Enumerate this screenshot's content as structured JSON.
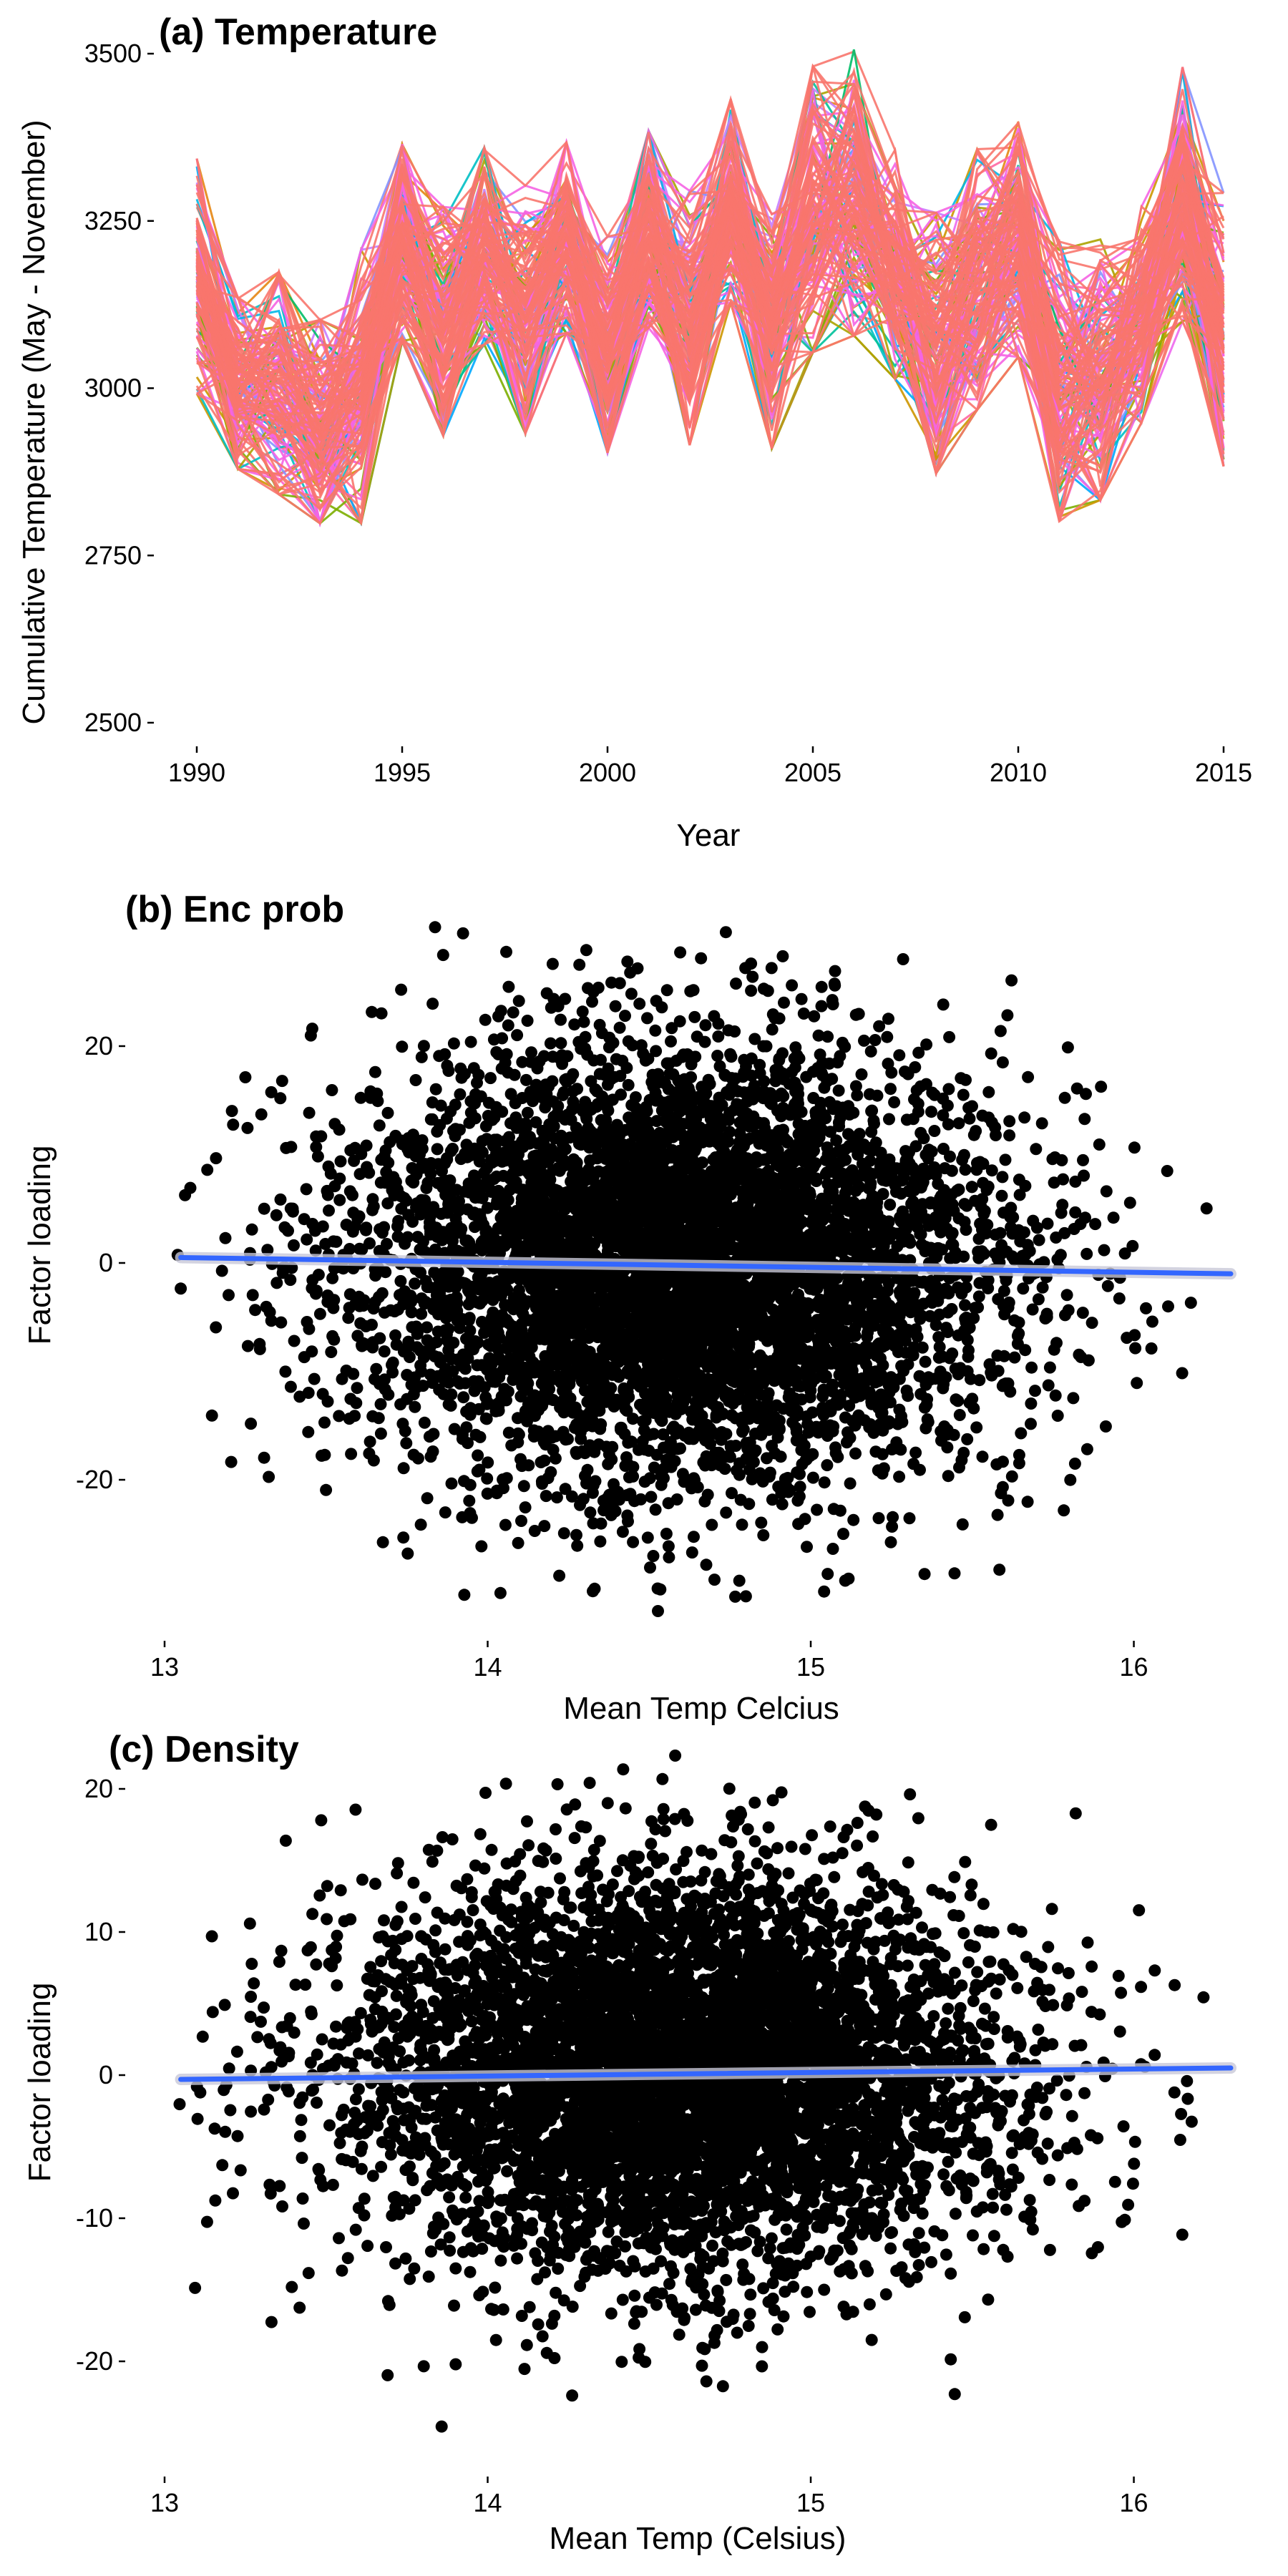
{
  "chart_data": [
    {
      "type": "line",
      "title": "(a) Temperature",
      "xlabel": "Year",
      "ylabel": "Cumulative Temperature (May - November)",
      "xlim": [
        1990,
        2015
      ],
      "ylim": [
        2500,
        3500
      ],
      "x_ticks": [
        "1990",
        "1995",
        "2000",
        "2005",
        "2010",
        "2015"
      ],
      "y_ticks": [
        "2500",
        "2750",
        "3000",
        "3250",
        "3500"
      ],
      "grid": false,
      "legend": "none",
      "series_count_approx": 150,
      "palette": [
        "#F8766D",
        "#E68613",
        "#CD9600",
        "#ABA300",
        "#7CAE00",
        "#0CB702",
        "#00BE67",
        "#00C19A",
        "#00BFC4",
        "#00B8E7",
        "#00A9FF",
        "#8494FF",
        "#C77CFF",
        "#ED68ED",
        "#FF61CC",
        "#FF68A1"
      ],
      "x": [
        1990,
        1991,
        1992,
        1993,
        1994,
        1995,
        1996,
        1997,
        1998,
        1999,
        2000,
        2001,
        2002,
        2003,
        2004,
        2005,
        2006,
        2007,
        2008,
        2009,
        2010,
        2011,
        2012,
        2013,
        2014,
        2015
      ],
      "mean_series": [
        3170,
        3010,
        2990,
        2950,
        2970,
        3230,
        3110,
        3210,
        3120,
        3230,
        3070,
        3250,
        3100,
        3290,
        3080,
        3320,
        3320,
        3190,
        3060,
        3160,
        3230,
        2960,
        3020,
        3100,
        3300,
        3060
      ],
      "envelope_high": [
        3350,
        3140,
        3200,
        3110,
        3250,
        3360,
        3270,
        3370,
        3310,
        3370,
        3230,
        3380,
        3310,
        3430,
        3320,
        3440,
        3490,
        3360,
        3280,
        3370,
        3400,
        3280,
        3240,
        3290,
        3480,
        3330
      ],
      "envelope_low": [
        2980,
        2870,
        2850,
        2790,
        2820,
        3050,
        2910,
        3060,
        2920,
        3070,
        2890,
        3070,
        2910,
        3110,
        2920,
        2990,
        3040,
        3000,
        2870,
        2960,
        3030,
        2840,
        2830,
        2950,
        3080,
        2900
      ]
    },
    {
      "type": "scatter",
      "title": "(b) Enc prob",
      "xlabel": "Mean Temp Celcius",
      "ylabel": "Factor loading",
      "xlim": [
        13,
        16.3
      ],
      "ylim": [
        -33,
        33
      ],
      "x_ticks": [
        "13",
        "14",
        "15",
        "16"
      ],
      "y_ticks": [
        "-20",
        "0",
        "20"
      ],
      "grid": false,
      "point_color": "#000000",
      "point_count_approx": 6000,
      "cloud": {
        "x_mean": 14.6,
        "x_sd": 0.5,
        "y_mean": 0,
        "y_sd": 10
      },
      "trend": {
        "x": [
          13.05,
          16.3
        ],
        "y": [
          0.5,
          -1.0
        ],
        "color": "#3366FF"
      }
    },
    {
      "type": "scatter",
      "title": "(c) Density",
      "xlabel": "Mean Temp (Celsius)",
      "ylabel": "Factor loading",
      "xlim": [
        13,
        16.3
      ],
      "ylim": [
        -27,
        23
      ],
      "x_ticks": [
        "13",
        "14",
        "15",
        "16"
      ],
      "y_ticks": [
        "-20",
        "-10",
        "0",
        "10",
        "20"
      ],
      "grid": false,
      "point_color": "#000000",
      "point_count_approx": 6000,
      "cloud": {
        "x_mean": 14.6,
        "x_sd": 0.5,
        "y_mean": 0,
        "y_sd": 7
      },
      "trend": {
        "x": [
          13.05,
          16.3
        ],
        "y": [
          -0.3,
          0.5
        ],
        "color": "#3366FF"
      }
    }
  ]
}
